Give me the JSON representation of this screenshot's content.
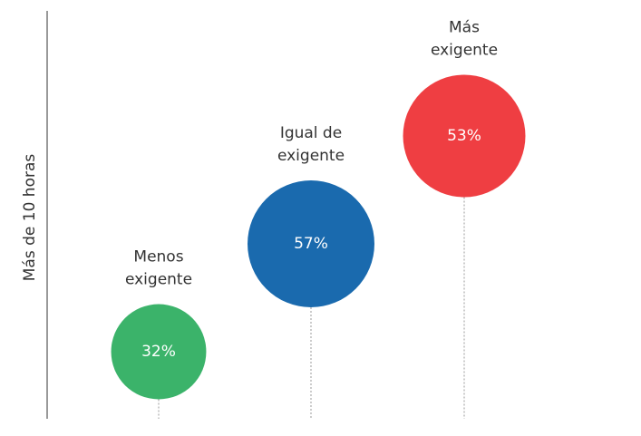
{
  "chart_data": {
    "type": "bubble",
    "ylabel": "Más de 10 horas",
    "categories": [
      [
        "Menos",
        "exigente"
      ],
      [
        "Igual de",
        "exigente"
      ],
      [
        "Más",
        "exigente"
      ]
    ],
    "values": [
      32,
      57,
      53
    ],
    "value_labels": [
      "32%",
      "57%",
      "53%"
    ],
    "colors": [
      "#3bb36a",
      "#1a6aae",
      "#ef3e42"
    ]
  }
}
